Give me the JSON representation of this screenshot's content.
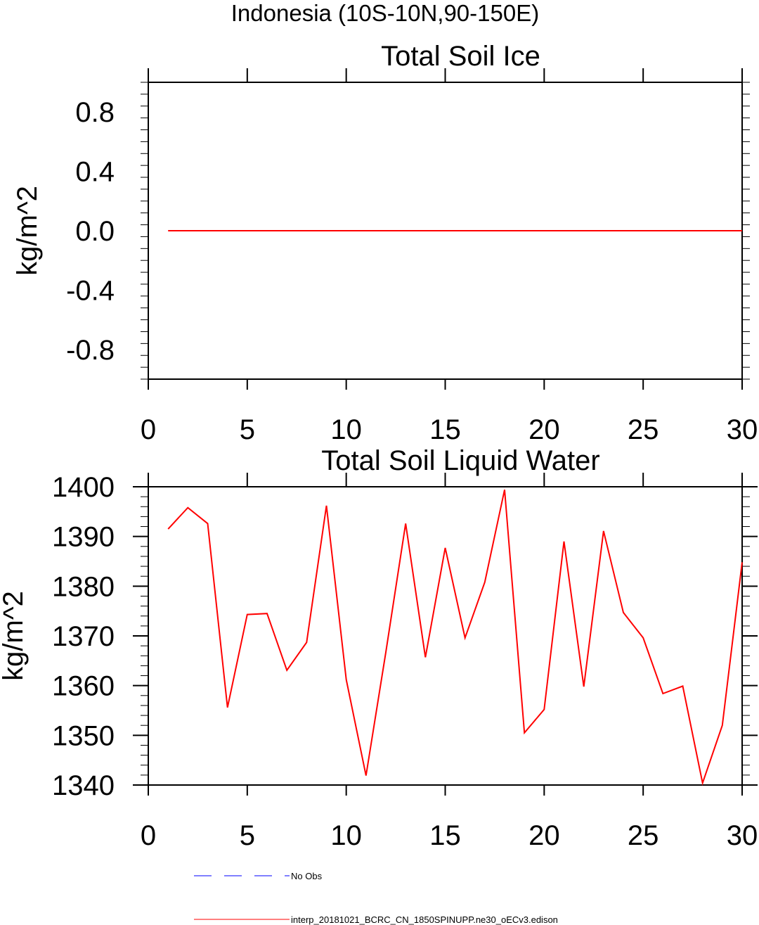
{
  "figure_title": "Indonesia (10S-10N,90-150E)",
  "legend": [
    {
      "label": "No Obs",
      "color": "#0000ff",
      "style": "dashed"
    },
    {
      "label": "interp_20181021_BCRC_CN_1850SPINUPP.ne30_oECv3.edison",
      "color": "#ff0000",
      "style": "solid"
    }
  ],
  "chart_data": [
    {
      "type": "line",
      "title": "Total Soil Ice",
      "ylabel": "kg/m^2",
      "xlabel": "",
      "xlim": [
        0,
        30
      ],
      "ylim": [
        -1,
        1
      ],
      "xticks": [
        0,
        5,
        10,
        15,
        20,
        25,
        30
      ],
      "yticks": [
        -0.8,
        -0.4,
        0.0,
        0.4,
        0.8
      ],
      "ytick_labels": [
        "-0.8",
        "-0.4",
        "0.0",
        "0.4",
        "0.8"
      ],
      "grid": false,
      "x": [
        1,
        30
      ],
      "series": [
        {
          "color": "#ff0000",
          "values": [
            0,
            0
          ]
        }
      ]
    },
    {
      "type": "line",
      "title": "Total Soil Liquid Water",
      "ylabel": "kg/m^2",
      "xlabel": "",
      "xlim": [
        0,
        30
      ],
      "ylim": [
        1340,
        1400
      ],
      "xticks": [
        0,
        5,
        10,
        15,
        20,
        25,
        30
      ],
      "yticks": [
        1340,
        1350,
        1360,
        1370,
        1380,
        1390,
        1400
      ],
      "ytick_labels": [
        "1340",
        "1350",
        "1360",
        "1370",
        "1380",
        "1390",
        "1400"
      ],
      "grid": false,
      "x": [
        1,
        2,
        3,
        4,
        5,
        6,
        7,
        8,
        9,
        10,
        11,
        12,
        13,
        14,
        15,
        16,
        17,
        18,
        19,
        20,
        21,
        22,
        23,
        24,
        25,
        26,
        27,
        28,
        29,
        30
      ],
      "series": [
        {
          "color": "#ff0000",
          "values": [
            1391.5,
            1395.8,
            1392.6,
            1355.6,
            1374.3,
            1374.5,
            1363.1,
            1368.7,
            1396.2,
            1361.2,
            1341.9,
            1366.7,
            1392.6,
            1365.7,
            1387.7,
            1369.6,
            1380.8,
            1399.4,
            1350.5,
            1355.2,
            1389.0,
            1359.8,
            1391.1,
            1374.7,
            1369.6,
            1358.4,
            1359.9,
            1340.4,
            1352.0,
            1384.8
          ]
        }
      ]
    }
  ]
}
